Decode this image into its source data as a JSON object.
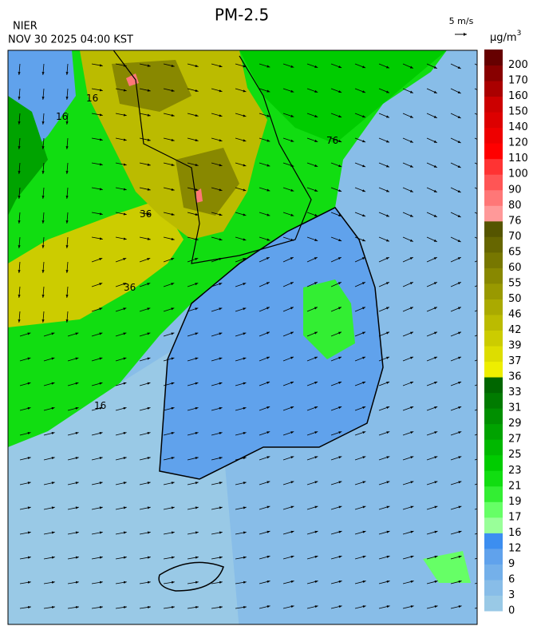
{
  "header": {
    "agency": "NIER",
    "timestamp": "NOV 30 2025 04:00 KST",
    "title": "PM-2.5"
  },
  "wind_scale": {
    "label": "5 m/s"
  },
  "colorbar": {
    "unit": {
      "base": "µg/m",
      "exponent": "3"
    },
    "levels": [
      0,
      3,
      6,
      9,
      12,
      16,
      17,
      19,
      21,
      23,
      25,
      27,
      29,
      31,
      33,
      36,
      37,
      39,
      42,
      46,
      50,
      55,
      60,
      65,
      70,
      76,
      80,
      90,
      100,
      110,
      120,
      140,
      150,
      160,
      170,
      200
    ],
    "colors": [
      "#99c9e6",
      "#88bde8",
      "#74b0ea",
      "#60a2ec",
      "#3c8ef0",
      "#99ff99",
      "#66ff66",
      "#33ee33",
      "#11dd11",
      "#00cc00",
      "#00b800",
      "#00a300",
      "#008f00",
      "#007b00",
      "#006600",
      "#eeee00",
      "#dddd00",
      "#cccc00",
      "#bbbb00",
      "#aaaa00",
      "#999900",
      "#888800",
      "#777700",
      "#666600",
      "#555500",
      "#ff9999",
      "#ff7777",
      "#ff5555",
      "#ff3333",
      "#ff0000",
      "#ee0000",
      "#dd0000",
      "#cc0000",
      "#aa0000",
      "#880000",
      "#660000"
    ]
  },
  "contour_labels": [
    "16",
    "16",
    "36",
    "36",
    "76",
    "16"
  ]
}
